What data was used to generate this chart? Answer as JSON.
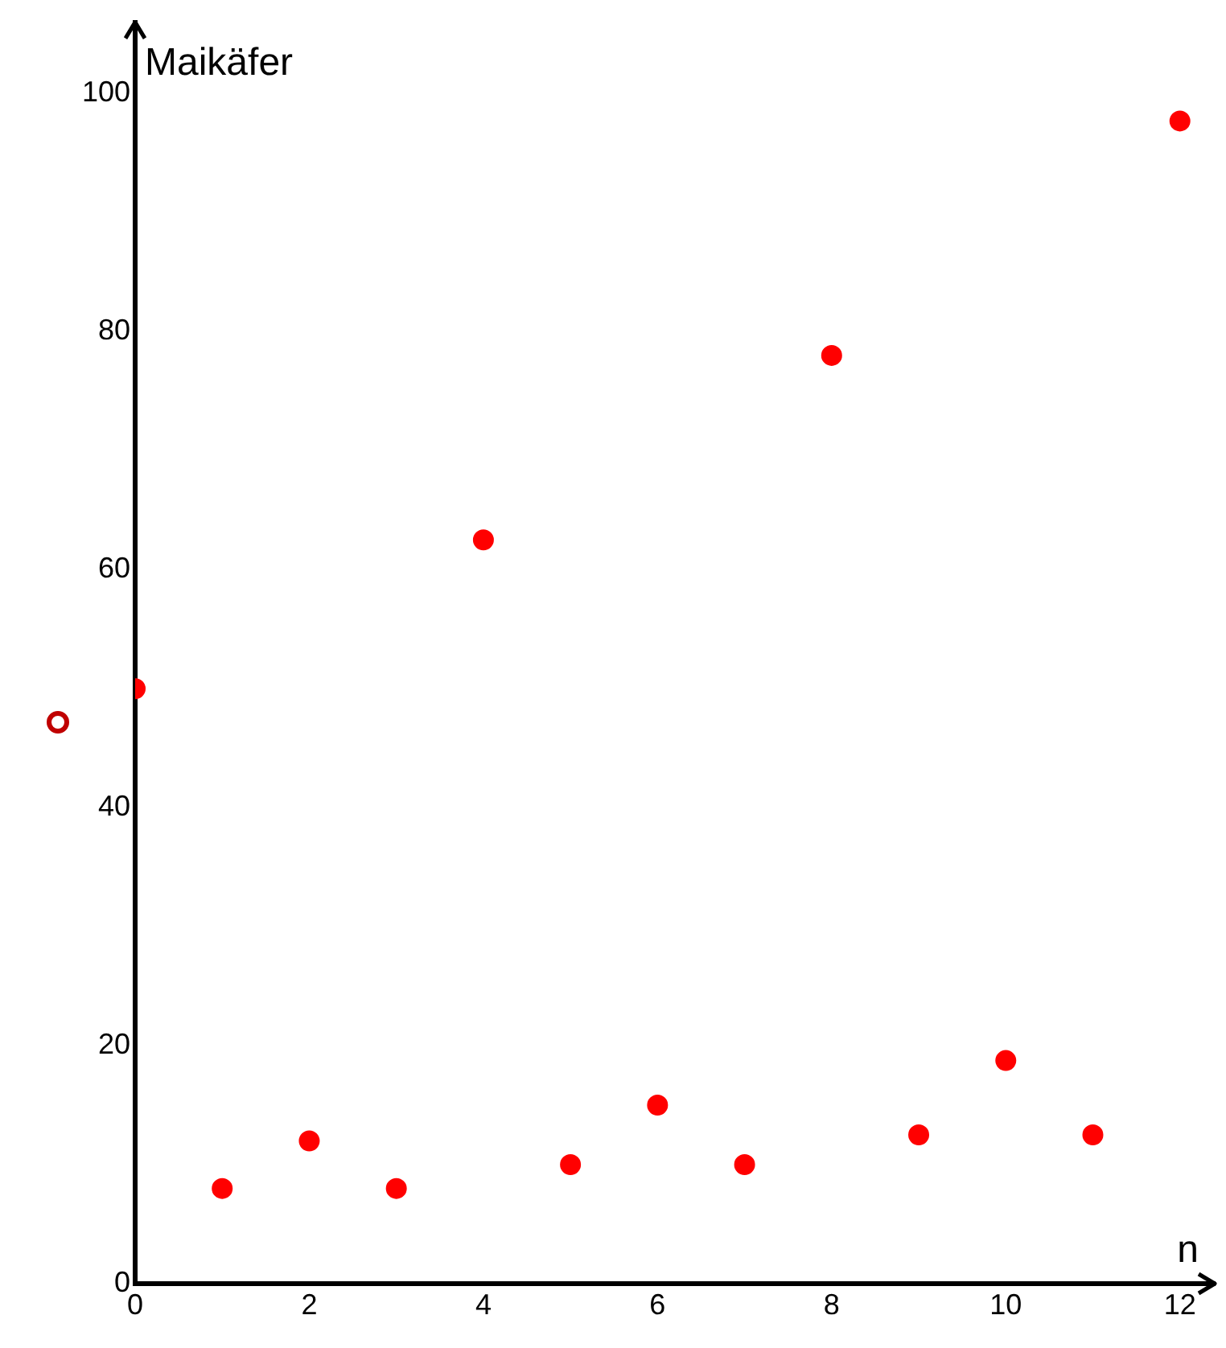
{
  "chart_data": {
    "type": "scatter",
    "xlabel": "n",
    "ylabel": "Maikäfer",
    "x": [
      0,
      1,
      2,
      3,
      4,
      5,
      6,
      7,
      8,
      9,
      10,
      11,
      12
    ],
    "series": [
      {
        "color": "#ff0000",
        "values": [
          50,
          8,
          12,
          8,
          62.5,
          10,
          15,
          10,
          78,
          12.5,
          18.75,
          12.5,
          97.7
        ]
      }
    ],
    "xlim": [
      0,
      12.4
    ],
    "ylim": [
      0,
      106
    ],
    "xticks": [
      0,
      2,
      4,
      6,
      8,
      10,
      12
    ],
    "yticks": [
      0,
      20,
      40,
      60,
      80,
      100
    ],
    "grid": false,
    "legend": false,
    "marker": "circle"
  }
}
